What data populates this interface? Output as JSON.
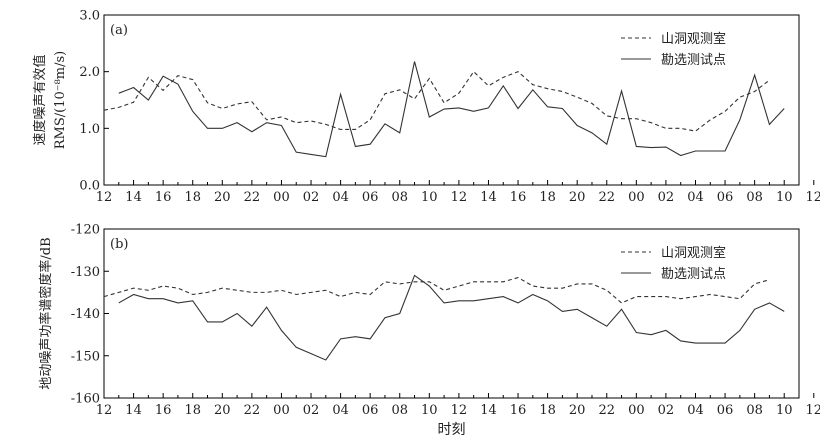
{
  "xlabel": "时刻",
  "x_tick_labels": [
    "12",
    "14",
    "16",
    "18",
    "20",
    "22",
    "00",
    "02",
    "04",
    "06",
    "08",
    "10",
    "12",
    "14",
    "16",
    "18",
    "20",
    "22",
    "00",
    "02",
    "04",
    "06",
    "08",
    "10",
    "12"
  ],
  "colors": {
    "series": "#333333",
    "axis": "#000000"
  },
  "chart_data": [
    {
      "type": "line",
      "panel_label": "(a)",
      "ylabel_line1": "速度噪声有效值",
      "ylabel_line2": "RMS/(10⁻⁸m/s)",
      "ylim": [
        0,
        3.0
      ],
      "y_ticks": [
        "0.0",
        "1.0",
        "2.0",
        "3.0"
      ],
      "y_tick_values": [
        0,
        1,
        2,
        3
      ],
      "legend": [
        "山洞观测室",
        "勘选测试点"
      ],
      "series": [
        {
          "name": "山洞观测室",
          "style": "dashed",
          "x": [
            0,
            1,
            2,
            3,
            4,
            5,
            6,
            7,
            8,
            9,
            10,
            11,
            12,
            13,
            14,
            15,
            16,
            17,
            18,
            19,
            20,
            21,
            22,
            23,
            24,
            25,
            26,
            27,
            28,
            29,
            30,
            31,
            32,
            33,
            34,
            35,
            36,
            37,
            38,
            39,
            40,
            41,
            42,
            43,
            44,
            45,
            46
          ],
          "y": [
            1.32,
            1.37,
            1.46,
            1.9,
            1.67,
            1.93,
            1.86,
            1.45,
            1.35,
            1.43,
            1.47,
            1.15,
            1.2,
            1.1,
            1.13,
            1.07,
            0.98,
            0.98,
            1.15,
            1.61,
            1.68,
            1.52,
            1.88,
            1.45,
            1.62,
            2.0,
            1.75,
            1.9,
            2.0,
            1.77,
            1.7,
            1.65,
            1.55,
            1.44,
            1.22,
            1.17,
            1.17,
            1.1,
            1.0,
            1.0,
            0.95,
            1.15,
            1.3,
            1.55,
            1.65,
            1.85,
            null
          ]
        },
        {
          "name": "勘选测试点",
          "style": "solid",
          "x": [
            0,
            1,
            2,
            3,
            4,
            5,
            6,
            7,
            8,
            9,
            10,
            11,
            12,
            13,
            14,
            15,
            16,
            17,
            18,
            19,
            20,
            21,
            22,
            23,
            24,
            25,
            26,
            27,
            28,
            29,
            30,
            31,
            32,
            33,
            34,
            35,
            36,
            37,
            38,
            39,
            40,
            41,
            42,
            43,
            44,
            45,
            46
          ],
          "y": [
            null,
            1.62,
            1.72,
            1.5,
            1.92,
            1.78,
            1.3,
            1.0,
            1.0,
            1.1,
            0.94,
            1.1,
            1.05,
            0.58,
            0.54,
            0.5,
            1.6,
            0.68,
            0.72,
            1.08,
            0.92,
            2.18,
            1.2,
            1.34,
            1.36,
            1.3,
            1.36,
            1.75,
            1.35,
            1.68,
            1.38,
            1.35,
            1.05,
            0.92,
            0.72,
            1.66,
            0.68,
            0.66,
            0.67,
            0.52,
            0.6,
            0.6,
            0.6,
            1.15,
            1.94,
            1.07,
            1.35
          ]
        }
      ]
    },
    {
      "type": "line",
      "panel_label": "(b)",
      "ylabel": "地动噪声功率谱密度率/dB",
      "ylim": [
        -160,
        -120
      ],
      "y_ticks": [
        "-120",
        "-130",
        "-140",
        "-150",
        "-160"
      ],
      "y_tick_values": [
        -120,
        -130,
        -140,
        -150,
        -160
      ],
      "legend": [
        "山洞观测室",
        "勘选测试点"
      ],
      "series": [
        {
          "name": "山洞观测室",
          "style": "dashed",
          "x": [
            0,
            1,
            2,
            3,
            4,
            5,
            6,
            7,
            8,
            9,
            10,
            11,
            12,
            13,
            14,
            15,
            16,
            17,
            18,
            19,
            20,
            21,
            22,
            23,
            24,
            25,
            26,
            27,
            28,
            29,
            30,
            31,
            32,
            33,
            34,
            35,
            36,
            37,
            38,
            39,
            40,
            41,
            42,
            43,
            44,
            45,
            46
          ],
          "y": [
            -136,
            -135,
            -134,
            -134.5,
            -133.5,
            -134,
            -135.5,
            -135,
            -134,
            -134.5,
            -135,
            -135,
            -134.5,
            -135.5,
            -135,
            -134.5,
            -136,
            -135,
            -135.5,
            -132.5,
            -133,
            -132.5,
            -132.5,
            -134.5,
            -133.5,
            -132.5,
            -132.5,
            -132.5,
            -131.5,
            -133.5,
            -134,
            -134,
            -133,
            -133,
            -134.5,
            -137.5,
            -136,
            -136,
            -136,
            -136.5,
            -136,
            -135.5,
            -136,
            -136.5,
            -133,
            -132,
            null
          ]
        },
        {
          "name": "勘选测试点",
          "style": "solid",
          "x": [
            0,
            1,
            2,
            3,
            4,
            5,
            6,
            7,
            8,
            9,
            10,
            11,
            12,
            13,
            14,
            15,
            16,
            17,
            18,
            19,
            20,
            21,
            22,
            23,
            24,
            25,
            26,
            27,
            28,
            29,
            30,
            31,
            32,
            33,
            34,
            35,
            36,
            37,
            38,
            39,
            40,
            41,
            42,
            43,
            44,
            45,
            46
          ],
          "y": [
            null,
            -137.5,
            -135.5,
            -136.5,
            -136.5,
            -137.5,
            -137,
            -142,
            -142,
            -140,
            -143,
            -138.5,
            -144,
            -148,
            -149.5,
            -151,
            -146,
            -145.5,
            -146,
            -141,
            -140,
            -131,
            -133.5,
            -137.5,
            -137,
            -137,
            -136.5,
            -136,
            -137.5,
            -135.5,
            -137,
            -139.5,
            -139,
            -141,
            -143,
            -139,
            -144.5,
            -145,
            -144,
            -146.5,
            -147,
            -147,
            -147,
            -144,
            -139,
            -137.5,
            -139.5
          ]
        }
      ]
    }
  ]
}
